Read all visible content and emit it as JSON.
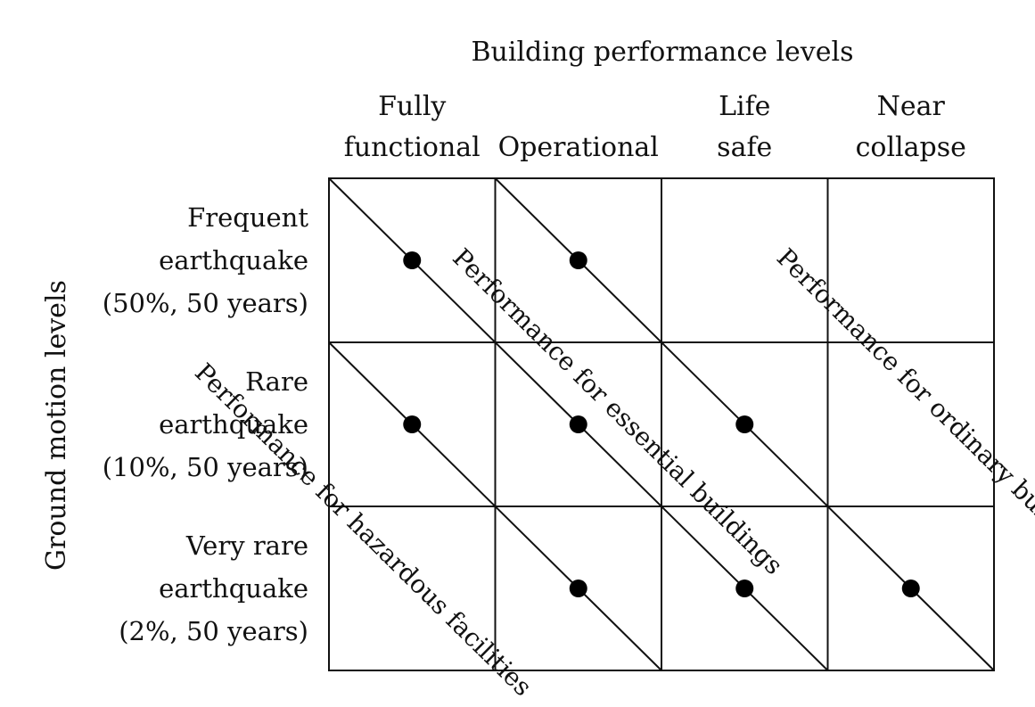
{
  "title": "Building performance levels",
  "y_axis_label": "Ground motion levels",
  "columns": [
    {
      "lines": [
        "Fully",
        "functional"
      ]
    },
    {
      "lines": [
        "Operational"
      ]
    },
    {
      "lines": [
        "Life",
        "safe"
      ]
    },
    {
      "lines": [
        "Near",
        "collapse"
      ]
    }
  ],
  "rows": [
    {
      "lines": [
        "Frequent",
        "earthquake",
        "(50%, 50 years)"
      ]
    },
    {
      "lines": [
        "Rare",
        "earthquake",
        "(10%, 50 years)"
      ]
    },
    {
      "lines": [
        "Very rare",
        "earthquake",
        "(2%, 50 years)"
      ]
    }
  ],
  "objectives": [
    {
      "label": "Performance for hazardous facilities",
      "points": [
        [
          0,
          1
        ],
        [
          1,
          2
        ]
      ]
    },
    {
      "label": "Performance for essential buildings",
      "points": [
        [
          0,
          0
        ],
        [
          1,
          1
        ],
        [
          2,
          2
        ]
      ]
    },
    {
      "label": "Performance for ordinary buildings",
      "points": [
        [
          1,
          0
        ],
        [
          2,
          1
        ],
        [
          3,
          2
        ]
      ]
    }
  ],
  "colors": {
    "line": "#111111",
    "dot": "#000000",
    "background": "#ffffff"
  }
}
